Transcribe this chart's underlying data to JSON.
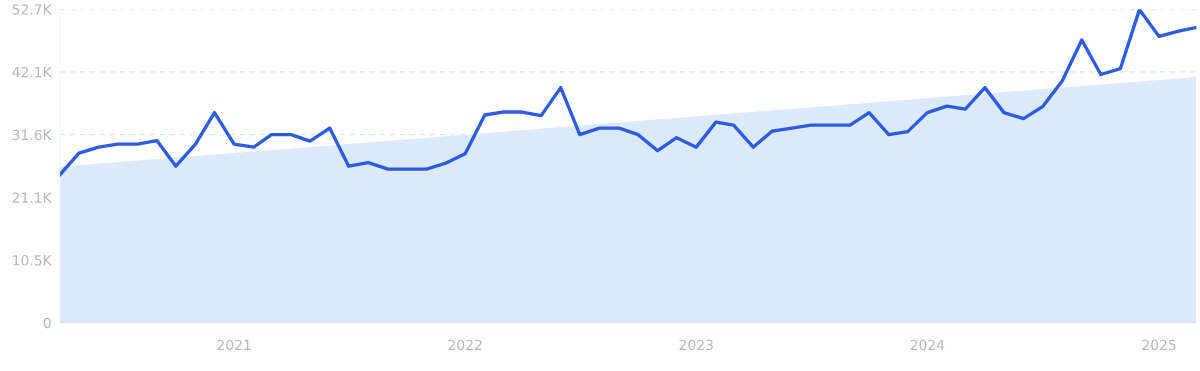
{
  "chart_data": {
    "type": "line",
    "x": [
      "2020-04",
      "2020-05",
      "2020-06",
      "2020-07",
      "2020-08",
      "2020-09",
      "2020-10",
      "2020-11",
      "2020-12",
      "2021-01",
      "2021-02",
      "2021-03",
      "2021-04",
      "2021-05",
      "2021-06",
      "2021-07",
      "2021-08",
      "2021-09",
      "2021-10",
      "2021-11",
      "2021-12",
      "2022-01",
      "2022-02",
      "2022-03",
      "2022-04",
      "2022-05",
      "2022-06",
      "2022-07",
      "2022-08",
      "2022-09",
      "2022-10",
      "2022-11",
      "2022-12",
      "2023-01",
      "2023-02",
      "2023-03",
      "2023-04",
      "2023-05",
      "2023-06",
      "2023-07",
      "2023-08",
      "2023-09",
      "2023-10",
      "2023-11",
      "2023-12",
      "2024-01",
      "2024-02",
      "2024-03",
      "2024-04",
      "2024-05",
      "2024-06",
      "2024-07",
      "2024-08",
      "2024-09",
      "2024-10",
      "2024-11",
      "2024-12",
      "2025-01",
      "2025-02",
      "2025-03"
    ],
    "series": [
      {
        "type": "area",
        "color": "#dceafb",
        "x": [
          "2020-04",
          "2025-03"
        ],
        "values": [
          26200,
          41300
        ]
      },
      {
        "color": "#2b5ce6",
        "values": [
          24900,
          28500,
          29500,
          30000,
          30000,
          30600,
          26300,
          30000,
          35300,
          30000,
          29500,
          31600,
          31600,
          30500,
          32700,
          26300,
          26900,
          25800,
          25800,
          25800,
          26800,
          28400,
          34900,
          35400,
          35400,
          34800,
          39500,
          31600,
          32700,
          32700,
          31600,
          28900,
          31100,
          29500,
          33700,
          33200,
          29500,
          32200,
          32700,
          33200,
          33200,
          33200,
          35300,
          31600,
          32100,
          35300,
          36400,
          35900,
          39500,
          35300,
          34300,
          36300,
          40600,
          47500,
          41700,
          42700,
          52600,
          48100,
          49000,
          49600
        ]
      }
    ],
    "xlim": [
      "2020-04",
      "2025-03"
    ],
    "xticks": [
      "2021",
      "2022",
      "2023",
      "2024",
      "2025"
    ],
    "ylim": [
      0,
      52660
    ],
    "yticks": [
      0,
      {
        "value": 10532,
        "label": "10.5K"
      },
      {
        "value": 21064,
        "label": "21.1K"
      },
      {
        "value": 31596,
        "label": "31.6K"
      },
      {
        "value": 42128,
        "label": "42.1K"
      },
      {
        "value": 52660,
        "label": "52.7K"
      }
    ],
    "grid": "y"
  }
}
